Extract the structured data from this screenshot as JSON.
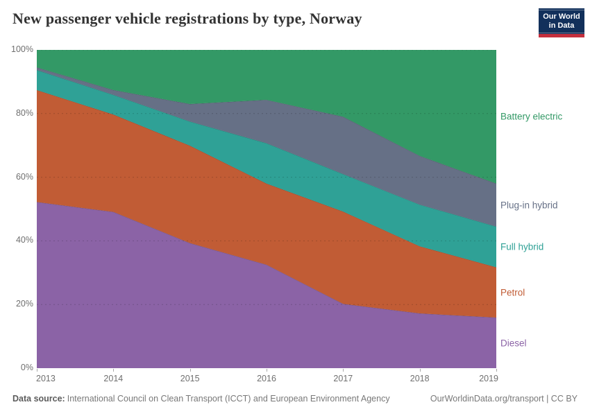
{
  "header": {
    "title": "New passenger vehicle registrations by type, Norway",
    "logo": {
      "line1": "Our World",
      "line2": "in Data",
      "bg_color": "#12305b",
      "accent_color": "#c5303e"
    }
  },
  "footer": {
    "source_label": "Data source:",
    "source_text": "International Council on Clean Transport (ICCT) and European Environment Agency",
    "link_text": "OurWorldinData.org/transport | CC BY"
  },
  "chart_data": {
    "type": "area",
    "stacked": true,
    "title": "New passenger vehicle registrations by type, Norway",
    "xlabel": "",
    "ylabel": "",
    "unit": "%",
    "x": [
      2013,
      2014,
      2015,
      2016,
      2017,
      2018,
      2019
    ],
    "series": [
      {
        "name": "Diesel",
        "color": "#8b63a6",
        "values": [
          52.2,
          49.1,
          39.3,
          32.5,
          20.2,
          17.2,
          15.9
        ]
      },
      {
        "name": "Petrol",
        "color": "#c15c35",
        "values": [
          35.2,
          30.6,
          30.6,
          25.5,
          29.0,
          21.1,
          15.8
        ]
      },
      {
        "name": "Full hybrid",
        "color": "#2fa196",
        "values": [
          6.3,
          6.2,
          7.6,
          12.7,
          11.8,
          13.1,
          12.8
        ]
      },
      {
        "name": "Plug-in hybrid",
        "color": "#667086",
        "values": [
          0.8,
          1.5,
          5.5,
          13.6,
          18.0,
          15.3,
          13.5
        ]
      },
      {
        "name": "Battery electric",
        "color": "#339966",
        "values": [
          5.5,
          12.6,
          17.0,
          15.7,
          21.0,
          33.3,
          42.0
        ]
      }
    ],
    "ylim": [
      0,
      100
    ],
    "yticks": [
      0,
      20,
      40,
      60,
      80,
      100
    ],
    "ytick_labels": [
      "0%",
      "20%",
      "40%",
      "60%",
      "80%",
      "100%"
    ],
    "grid": "horizontal dashed at 20/40/60/80/100",
    "legend_position": "labels at right edge of plot, colored like series"
  }
}
